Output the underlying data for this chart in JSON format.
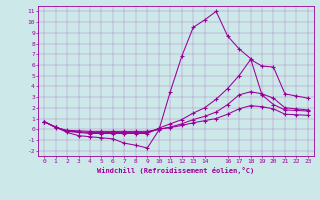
{
  "xlabel": "Windchill (Refroidissement éolien,°C)",
  "bg_color": "#cce8e8",
  "line_color": "#990099",
  "xlim": [
    -0.5,
    23.5
  ],
  "ylim": [
    -2.5,
    11.5
  ],
  "xticks": [
    0,
    1,
    2,
    3,
    4,
    5,
    6,
    7,
    8,
    9,
    10,
    11,
    12,
    13,
    14,
    16,
    17,
    18,
    19,
    20,
    21,
    22,
    23
  ],
  "yticks": [
    -2,
    -1,
    0,
    1,
    2,
    3,
    4,
    5,
    6,
    7,
    8,
    9,
    10,
    11
  ],
  "lines": [
    {
      "x": [
        0,
        1,
        2,
        3,
        4,
        5,
        6,
        7,
        8,
        9,
        10,
        11,
        12,
        13,
        14,
        15,
        16,
        17,
        18,
        19,
        20,
        21,
        22,
        23
      ],
      "y": [
        0.7,
        0.2,
        -0.3,
        -0.6,
        -0.7,
        -0.8,
        -0.9,
        -1.3,
        -1.5,
        -1.75,
        -0.1,
        3.5,
        6.8,
        9.5,
        10.2,
        11.0,
        8.7,
        7.5,
        6.6,
        3.2,
        2.3,
        1.8,
        1.75,
        1.7
      ]
    },
    {
      "x": [
        0,
        1,
        2,
        3,
        4,
        5,
        6,
        7,
        8,
        9,
        10,
        11,
        12,
        13,
        14,
        15,
        16,
        17,
        18,
        19,
        20,
        21,
        22,
        23
      ],
      "y": [
        0.7,
        0.2,
        -0.2,
        -0.3,
        -0.4,
        -0.4,
        -0.4,
        -0.4,
        -0.4,
        -0.4,
        0.1,
        0.5,
        0.9,
        1.5,
        2.0,
        2.8,
        3.8,
        5.0,
        6.5,
        5.9,
        5.8,
        3.3,
        3.1,
        2.9
      ]
    },
    {
      "x": [
        0,
        1,
        2,
        3,
        4,
        5,
        6,
        7,
        8,
        9,
        10,
        11,
        12,
        13,
        14,
        15,
        16,
        17,
        18,
        19,
        20,
        21,
        22,
        23
      ],
      "y": [
        0.7,
        0.2,
        -0.15,
        -0.25,
        -0.3,
        -0.3,
        -0.3,
        -0.3,
        -0.3,
        -0.3,
        0.0,
        0.2,
        0.5,
        0.9,
        1.2,
        1.6,
        2.3,
        3.2,
        3.5,
        3.3,
        2.9,
        2.0,
        1.9,
        1.8
      ]
    },
    {
      "x": [
        0,
        1,
        2,
        3,
        4,
        5,
        6,
        7,
        8,
        9,
        10,
        11,
        12,
        13,
        14,
        15,
        16,
        17,
        18,
        19,
        20,
        21,
        22,
        23
      ],
      "y": [
        0.7,
        0.15,
        -0.1,
        -0.15,
        -0.2,
        -0.2,
        -0.2,
        -0.2,
        -0.2,
        -0.2,
        0.0,
        0.15,
        0.35,
        0.6,
        0.8,
        1.0,
        1.4,
        1.9,
        2.2,
        2.1,
        1.9,
        1.4,
        1.35,
        1.3
      ]
    }
  ]
}
